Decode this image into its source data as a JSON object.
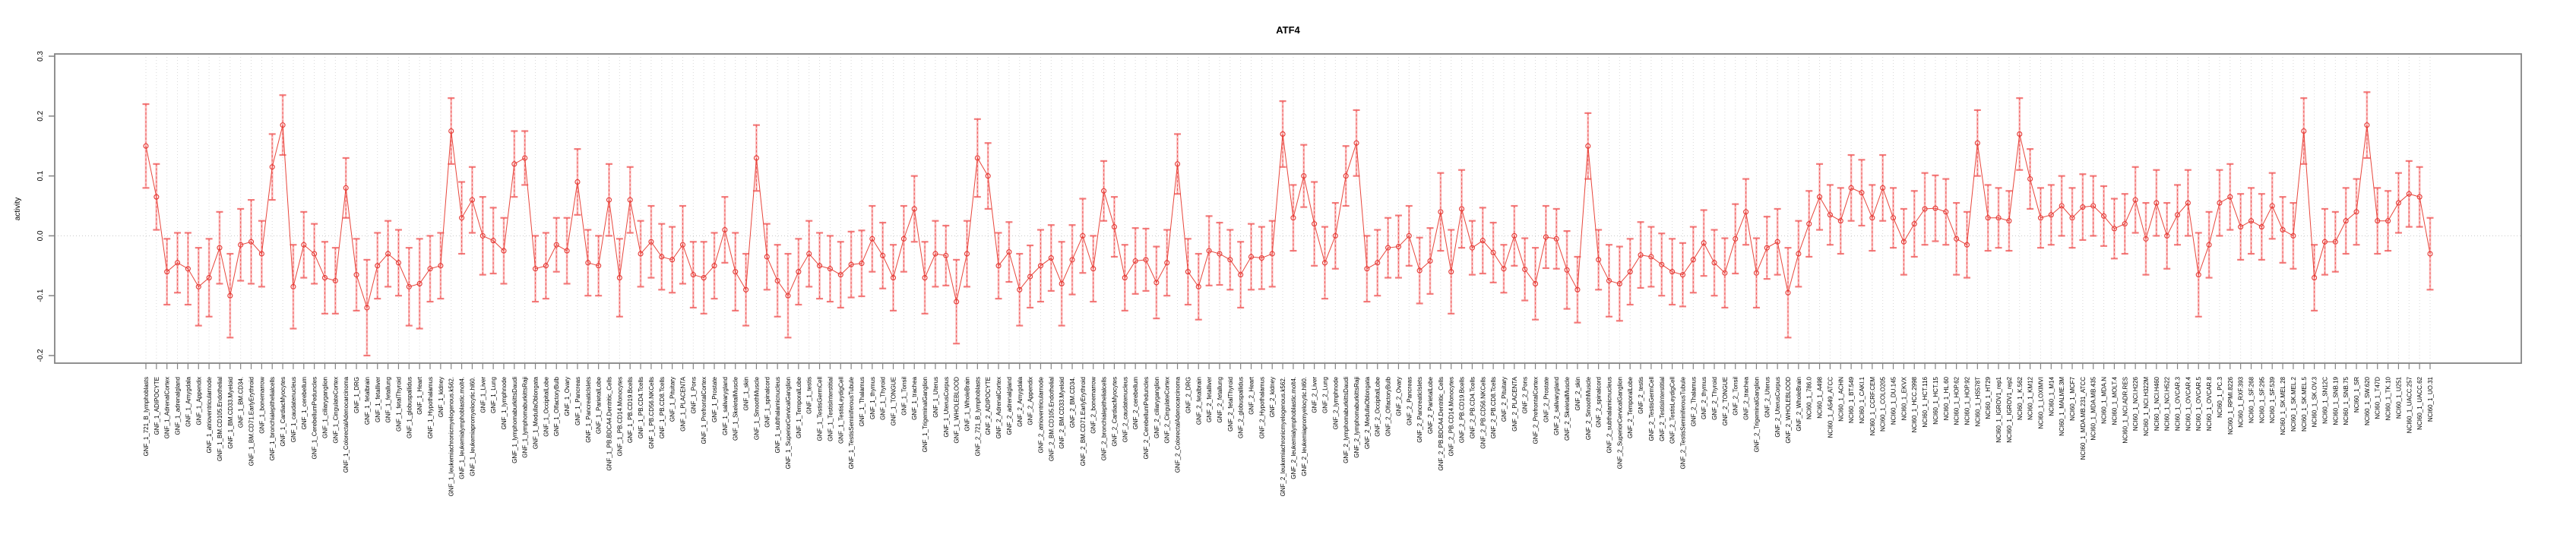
{
  "figure": {
    "title": "ATF4",
    "ylabel": "activity",
    "background": "#ffffff",
    "frame_color": "#848484",
    "gridline_color": "#d9d9d9",
    "zero_line_color": "#c8c8c8",
    "line_color": "#e8463c",
    "marker_color": "#e53935",
    "errorbar_solid_color": "rgba(247,120,120,0.5)",
    "errorbar_dash_color": "#ef5a5a",
    "errorbar_cap_color": "rgba(240,90,90,0.8)"
  },
  "chart_data": {
    "type": "line",
    "subtype": "errorbar-series",
    "title": "ATF4",
    "xlabel": "",
    "ylabel": "activity",
    "ylim": [
      -0.213,
      0.309
    ],
    "yticks": [
      -0.2,
      -0.1,
      0.0,
      0.1,
      0.2,
      0.3
    ],
    "grid": "vertical dotted gridline at every category; dotted horizontal line at y=0",
    "legend": "none",
    "marker": "open-circle",
    "categories": [
      "GNF_1_721_B_lymphoblasts",
      "GNF_1_ADIPOCYTE",
      "GNF_1_AdrenalCortex",
      "GNF_1_adrenalgland",
      "GNF_1_Amygdala",
      "GNF_1_Appendix",
      "GNF_1_atrioventricularnode",
      "GNF_1_BM.CD105.Endothelial",
      "GNF_1_BM.CD33.Myeloid",
      "GNF_1_BM.CD34.",
      "GNF_1_BM.CD71.EarlyErythroid",
      "GNF_1_bonemarrow",
      "GNF_1_bronchialepithelialcells",
      "GNF_1_CardiacMyocytes",
      "GNF_1_caudatenucleus",
      "GNF_1_cerebellum",
      "GNF_1_CerebellumPeduncles",
      "GNF_1_ciliaryganglion",
      "GNF_1_CingulateCortex",
      "GNF_1_ColorectalAdenocarcinoma",
      "GNF_1_DRG",
      "GNF_1_fetalbrain",
      "GNF_1_fetalliver",
      "GNF_1_fetallung",
      "GNF_1_fetalThyroid",
      "GNF_1_globuspallidus",
      "GNF_1_Heart",
      "GNF_1_Hypothalamus",
      "GNF_1_kidney",
      "GNF_1_leukemiachronicmyelogenous.k562.",
      "GNF_1_leukemialymphoblastic.molt4.",
      "GNF_1_leukemiapromyelocytic.hl60.",
      "GNF_1_Liver",
      "GNF_1_Lung",
      "GNF_1_lymphnode",
      "GNF_1_lymphomaburkittsDaudi",
      "GNF_1_lymphomaburkittsRaji",
      "GNF_1_MedullaOblongata",
      "GNF_1_OccipitalLobe",
      "GNF_1_OlfactoryBulb",
      "GNF_1_Ovary",
      "GNF_1_Pancreas",
      "GNF_1_PancreaticIslets",
      "GNF_1_ParietalLobe",
      "GNF_1_PB.BDCA4.Dentritic_Cells",
      "GNF_1_PB.CD14.Monocytes",
      "GNF_1_PB.CD19.Bcells",
      "GNF_1_PB.CD4.Tcells",
      "GNF_1_PB.CD56.NKCells",
      "GNF_1_PB.CD8.Tcells",
      "GNF_1_Pituitary",
      "GNF_1_PLACENTA",
      "GNF_1_Pons",
      "GNF_1_PrefrontalCortex",
      "GNF_1_Prostate",
      "GNF_1_salivarygland",
      "GNF_1_SkeletalMuscle",
      "GNF_1_skin",
      "GNF_1_SmoothMuscle",
      "GNF_1_spinalcord",
      "GNF_1_subthalamicnucleus",
      "GNF_1_SuperiorCervicalGanglion",
      "GNF_1_TemporalLobe",
      "GNF_1_testis",
      "GNF_1_TestisGermCell",
      "GNF_1_TestisInterstitial",
      "GNF_1_TestisLeydigCell",
      "GNF_1_TestisSeminiferousTubule",
      "GNF_1_Thalamus",
      "GNF_1_thymus",
      "GNF_1_Thyroid",
      "GNF_1_TONGUE",
      "GNF_1_Tonsil",
      "GNF_1_trachea",
      "GNF_1_TrigeminalGanglion",
      "GNF_1_Uterus",
      "GNF_1_UterusCorpus",
      "GNF_1_WHOLEBLOOD",
      "GNF_1_WholeBrain",
      "GNF_2_721_B_lymphoblasts",
      "GNF_2_ADIPOCYTE",
      "GNF_2_AdrenalCortex",
      "GNF_2_adrenalgland",
      "GNF_2_Amygdala",
      "GNF_2_Appendix",
      "GNF_2_atrioventricularnode",
      "GNF_2_BM.CD105.Endothelial",
      "GNF_2_BM.CD33.Myeloid",
      "GNF_2_BM.CD34.",
      "GNF_2_BM.CD71.EarlyErythroid",
      "GNF_2_bonemarrow",
      "GNF_2_bronchialepithelialcells",
      "GNF_2_CardiacMyocytes",
      "GNF_2_caudatenucleus",
      "GNF_2_cerebellum",
      "GNF_2_CerebellumPeduncles",
      "GNF_2_ciliaryganglion",
      "GNF_2_CingulateCortex",
      "GNF_2_ColorectalAdenocarcinoma",
      "GNF_2_DRG",
      "GNF_2_fetalbrain",
      "GNF_2_fetalliver",
      "GNF_2_fetallung",
      "GNF_2_fetalThyroid",
      "GNF_2_globuspallidus",
      "GNF_2_Heart",
      "GNF_2_Hypothalamus",
      "GNF_2_kidney",
      "GNF_2_leukemiachronicmyelogenous.k562.",
      "GNF_2_leukemialymphoblastic.molt4.",
      "GNF_2_leukemiapromyelocytic.hl60.",
      "GNF_2_Liver",
      "GNF_2_Lung",
      "GNF_2_lymphnode",
      "GNF_2_lymphomaburkittsDaudi",
      "GNF_2_lymphomaburkittsRaji",
      "GNF_2_MedullaOblongata",
      "GNF_2_OccipitalLobe",
      "GNF_2_OlfactoryBulb",
      "GNF_2_Ovary",
      "GNF_2_Pancreas",
      "GNF_2_PancreaticIslets",
      "GNF_2_ParietalLobe",
      "GNF_2_PB.BDCA4.Dentritic_Cells",
      "GNF_2_PB.CD14.Monocytes",
      "GNF_2_PB.CD19.Bcells",
      "GNF_2_PB.CD4.Tcells",
      "GNF_2_PB.CD56.NKCells",
      "GNF_2_PB.CD8.Tcells",
      "GNF_2_Pituitary",
      "GNF_2_PLACENTA",
      "GNF_2_Pons",
      "GNF_2_PrefrontalCortex",
      "GNF_2_Prostate",
      "GNF_2_salivarygland",
      "GNF_2_SkeletalMuscle",
      "GNF_2_skin",
      "GNF_2_SmoothMuscle",
      "GNF_2_spinalcord",
      "GNF_2_subthalamicnucleus",
      "GNF_2_SuperiorCervicalGanglion",
      "GNF_2_TemporalLobe",
      "GNF_2_testis",
      "GNF_2_TestisGermCell",
      "GNF_2_TestisInterstitial",
      "GNF_2_TestisLeydigCell",
      "GNF_2_TestisSeminiferousTubule",
      "GNF_2_Thalamus",
      "GNF_2_thymus",
      "GNF_2_Thyroid",
      "GNF_2_TONGUE",
      "GNF_2_Tonsil",
      "GNF_2_trachea",
      "GNF_2_TrigeminalGanglion",
      "GNF_2_Uterus",
      "GNF_2_UterusCorpus",
      "GNF_2_WHOLEBLOOD",
      "GNF_2_WholeBrain",
      "NCI60_1_786.0",
      "NCI60_1_A498",
      "NCI60_1_A549_ATCC",
      "NCI60_1_ACHN",
      "NCI60_1_BT.549",
      "NCI60_1_CAKI.1",
      "NCI60_1_CCRF.CEM",
      "NCI60_1_COLO205",
      "NCI60_1_DU.145",
      "NCI60_1_EKVX",
      "NCI60_1_HCC.2998",
      "NCI60_1_HCT.116",
      "NCI60_1_HCT.15",
      "NCI60_1_HL.60",
      "NCI60_1_HOP.62",
      "NCI60_1_HOP.92",
      "NCI60_1_HS578T",
      "NCI60_1_HT29",
      "NCI60_1_IGROV1_rep1",
      "NCI60_1_IGROV1_rep2",
      "NCI60_1_K.562",
      "NCI60_1_KM12",
      "NCI60_1_LOXIMVI",
      "NCI60_1_M14",
      "NCI60_1_MALME.3M",
      "NCI60_1_MCF7",
      "NCI60_1_MDA.MB.231_ATCC",
      "NCI60_1_MDA.MB.435",
      "NCI60_1_MDA.N",
      "NCI60_1_MOLT.4",
      "NCI60_1_NCI.ADR.RES",
      "NCI60_1_NCI.H226",
      "NCI60_1_NCI.H322M",
      "NCI60_1_NCI.H460",
      "NCI60_1_NCI.H522",
      "NCI60_1_OVCAR.3",
      "NCI60_1_OVCAR.4",
      "NCI60_1_OVCAR.5",
      "NCI60_1_OVCAR.8",
      "NCI60_1_PC.3",
      "NCI60_1_RPMI.8226",
      "NCI60_1_RXF.393",
      "NCI60_1_SF.268",
      "NCI60_1_SF.295",
      "NCI60_1_SF.539",
      "NCI60_1_SK.MEL.28",
      "NCI60_1_SK.MEL.2",
      "NCI60_1_SK.MEL.5",
      "NCI60_1_SK.OV.3",
      "NCI60_1_SN12C",
      "NCI60_1_SNB.19",
      "NCI60_1_SNB.75",
      "NCI60_1_SR",
      "NCI60_1_SW.620",
      "NCI60_1_T47D",
      "NCI60_1_TK.10",
      "NCI60_1_U251",
      "NCI60_1_UACC.257",
      "NCI60_1_UACC.62",
      "NCI60_1_UO.31"
    ],
    "series": [
      {
        "name": "activity",
        "values": [
          0.15,
          0.065,
          -0.06,
          -0.045,
          -0.055,
          -0.085,
          -0.07,
          -0.02,
          -0.1,
          -0.015,
          -0.01,
          -0.03,
          0.115,
          0.185,
          -0.085,
          -0.015,
          -0.03,
          -0.07,
          -0.075,
          0.08,
          -0.065,
          -0.12,
          -0.05,
          -0.03,
          -0.045,
          -0.085,
          -0.08,
          -0.055,
          -0.05,
          0.175,
          0.03,
          0.06,
          0.0,
          -0.008,
          -0.025,
          0.12,
          0.13,
          -0.055,
          -0.05,
          -0.015,
          -0.025,
          0.09,
          -0.045,
          -0.05,
          0.06,
          -0.07,
          0.06,
          -0.03,
          -0.01,
          -0.035,
          -0.04,
          -0.015,
          -0.065,
          -0.07,
          -0.05,
          0.01,
          -0.06,
          -0.09,
          0.13,
          -0.035,
          -0.075,
          -0.1,
          -0.06,
          -0.03,
          -0.05,
          -0.055,
          -0.065,
          -0.048,
          -0.046,
          -0.005,
          -0.033,
          -0.07,
          -0.005,
          0.045,
          -0.07,
          -0.03,
          -0.033,
          -0.11,
          -0.03,
          0.13,
          0.1,
          -0.05,
          -0.027,
          -0.09,
          -0.068,
          -0.05,
          -0.037,
          -0.08,
          -0.04,
          0.0,
          -0.055,
          0.075,
          0.015,
          -0.07,
          -0.042,
          -0.04,
          -0.078,
          -0.045,
          0.12,
          -0.06,
          -0.085,
          -0.025,
          -0.03,
          -0.04,
          -0.065,
          -0.035,
          -0.037,
          -0.03,
          0.17,
          0.03,
          0.1,
          0.02,
          -0.045,
          0.0,
          0.1,
          0.155,
          -0.055,
          -0.045,
          -0.02,
          -0.018,
          0.0,
          -0.058,
          -0.042,
          0.04,
          -0.06,
          0.045,
          -0.02,
          -0.008,
          -0.028,
          -0.055,
          0.0,
          -0.056,
          -0.08,
          -0.002,
          -0.005,
          -0.057,
          -0.09,
          0.15,
          -0.04,
          -0.075,
          -0.08,
          -0.06,
          -0.032,
          -0.035,
          -0.048,
          -0.06,
          -0.065,
          -0.04,
          -0.012,
          -0.045,
          -0.062,
          -0.005,
          0.04,
          -0.062,
          -0.02,
          -0.01,
          -0.095,
          -0.03,
          0.02,
          0.065,
          0.035,
          0.025,
          0.08,
          0.072,
          0.03,
          0.08,
          0.03,
          -0.01,
          0.02,
          0.045,
          0.046,
          0.04,
          -0.005,
          -0.015,
          0.155,
          0.03,
          0.03,
          0.025,
          0.17,
          0.095,
          0.03,
          0.035,
          0.05,
          0.03,
          0.048,
          0.05,
          0.033,
          0.012,
          0.02,
          0.06,
          -0.005,
          0.055,
          0.0,
          0.035,
          0.055,
          -0.065,
          -0.015,
          0.055,
          0.065,
          0.015,
          0.025,
          0.015,
          0.05,
          0.01,
          0.0,
          0.175,
          -0.07,
          -0.01,
          -0.01,
          0.025,
          0.04,
          0.185,
          0.025,
          0.025,
          0.055,
          0.07,
          0.065,
          -0.03
        ],
        "errors": [
          0.07,
          0.055,
          0.055,
          0.05,
          0.06,
          0.065,
          0.065,
          0.06,
          0.07,
          0.06,
          0.07,
          0.055,
          0.055,
          0.05,
          0.07,
          0.055,
          0.05,
          0.06,
          0.055,
          0.05,
          0.06,
          0.08,
          0.055,
          0.055,
          0.055,
          0.065,
          0.075,
          0.055,
          0.055,
          0.055,
          0.06,
          0.055,
          0.065,
          0.055,
          0.055,
          0.055,
          0.045,
          0.055,
          0.055,
          0.045,
          0.055,
          0.055,
          0.055,
          0.05,
          0.06,
          0.065,
          0.055,
          0.055,
          0.06,
          0.055,
          0.055,
          0.065,
          0.055,
          0.06,
          0.055,
          0.055,
          0.065,
          0.06,
          0.055,
          0.055,
          0.06,
          0.07,
          0.055,
          0.055,
          0.055,
          0.055,
          0.055,
          0.055,
          0.055,
          0.055,
          0.055,
          0.055,
          0.055,
          0.055,
          0.06,
          0.055,
          0.05,
          0.07,
          0.055,
          0.065,
          0.055,
          0.055,
          0.05,
          0.06,
          0.052,
          0.06,
          0.055,
          0.07,
          0.058,
          0.062,
          0.055,
          0.05,
          0.05,
          0.055,
          0.055,
          0.052,
          0.06,
          0.055,
          0.05,
          0.055,
          0.055,
          0.058,
          0.052,
          0.05,
          0.055,
          0.055,
          0.052,
          0.055,
          0.055,
          0.055,
          0.052,
          0.07,
          0.06,
          0.055,
          0.05,
          0.055,
          0.055,
          0.055,
          0.05,
          0.052,
          0.05,
          0.055,
          0.055,
          0.065,
          0.07,
          0.065,
          0.045,
          0.055,
          0.05,
          0.04,
          0.05,
          0.052,
          0.06,
          0.052,
          0.05,
          0.065,
          0.055,
          0.055,
          0.05,
          0.06,
          0.062,
          0.055,
          0.055,
          0.05,
          0.052,
          0.055,
          0.053,
          0.055,
          0.055,
          0.055,
          0.058,
          0.058,
          0.055,
          0.058,
          0.052,
          0.055,
          0.075,
          0.055,
          0.055,
          0.055,
          0.05,
          0.055,
          0.055,
          0.055,
          0.055,
          0.055,
          0.05,
          0.055,
          0.055,
          0.06,
          0.055,
          0.055,
          0.06,
          0.055,
          0.055,
          0.055,
          0.05,
          0.05,
          0.06,
          0.05,
          0.05,
          0.05,
          0.05,
          0.05,
          0.055,
          0.05,
          0.05,
          0.05,
          0.05,
          0.055,
          0.06,
          0.055,
          0.055,
          0.05,
          0.055,
          0.07,
          0.055,
          0.055,
          0.055,
          0.055,
          0.055,
          0.055,
          0.055,
          0.055,
          0.055,
          0.055,
          0.055,
          0.055,
          0.05,
          0.055,
          0.055,
          0.055,
          0.055,
          0.05,
          0.05,
          0.055,
          0.05,
          0.06
        ]
      }
    ]
  }
}
